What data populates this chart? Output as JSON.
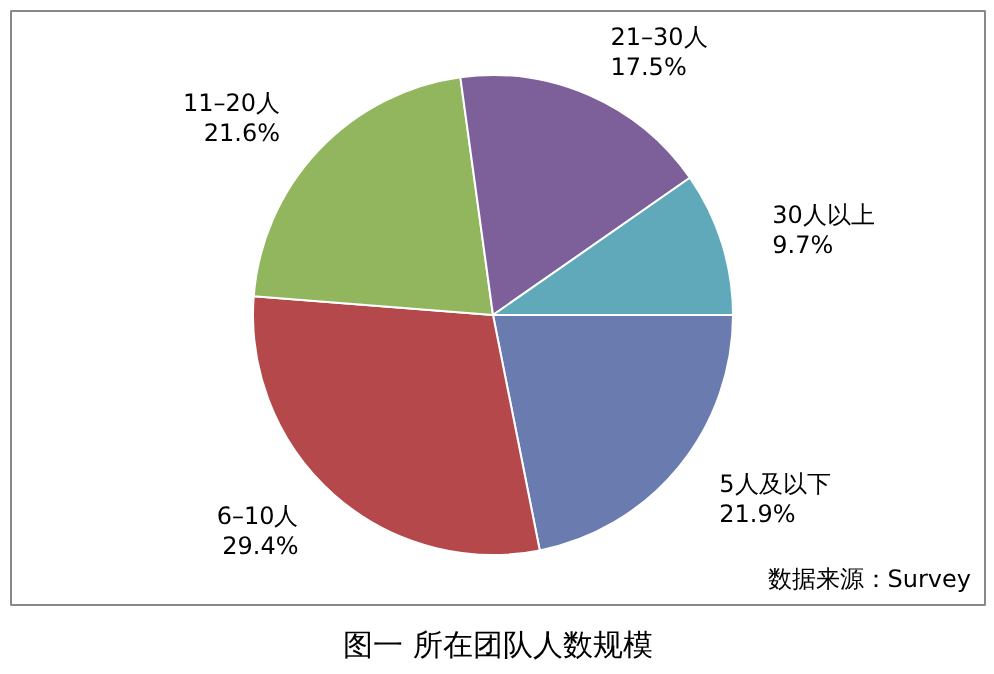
{
  "chart_data": {
    "type": "pie",
    "title": "图一 所在团队人数规模",
    "annotations": [
      "数据来源：Survey"
    ],
    "categories": [
      "5人及以下",
      "6–10人",
      "11–20人",
      "21–30人",
      "30人以上"
    ],
    "values": [
      21.9,
      29.4,
      21.6,
      17.5,
      9.7
    ],
    "colors": [
      "#6a7bb0",
      "#b5484a",
      "#91b65d",
      "#7d609a",
      "#5fa9bb"
    ],
    "value_labels": [
      "21.9%",
      "29.4%",
      "21.6%",
      "17.5%",
      "9.7%"
    ]
  }
}
